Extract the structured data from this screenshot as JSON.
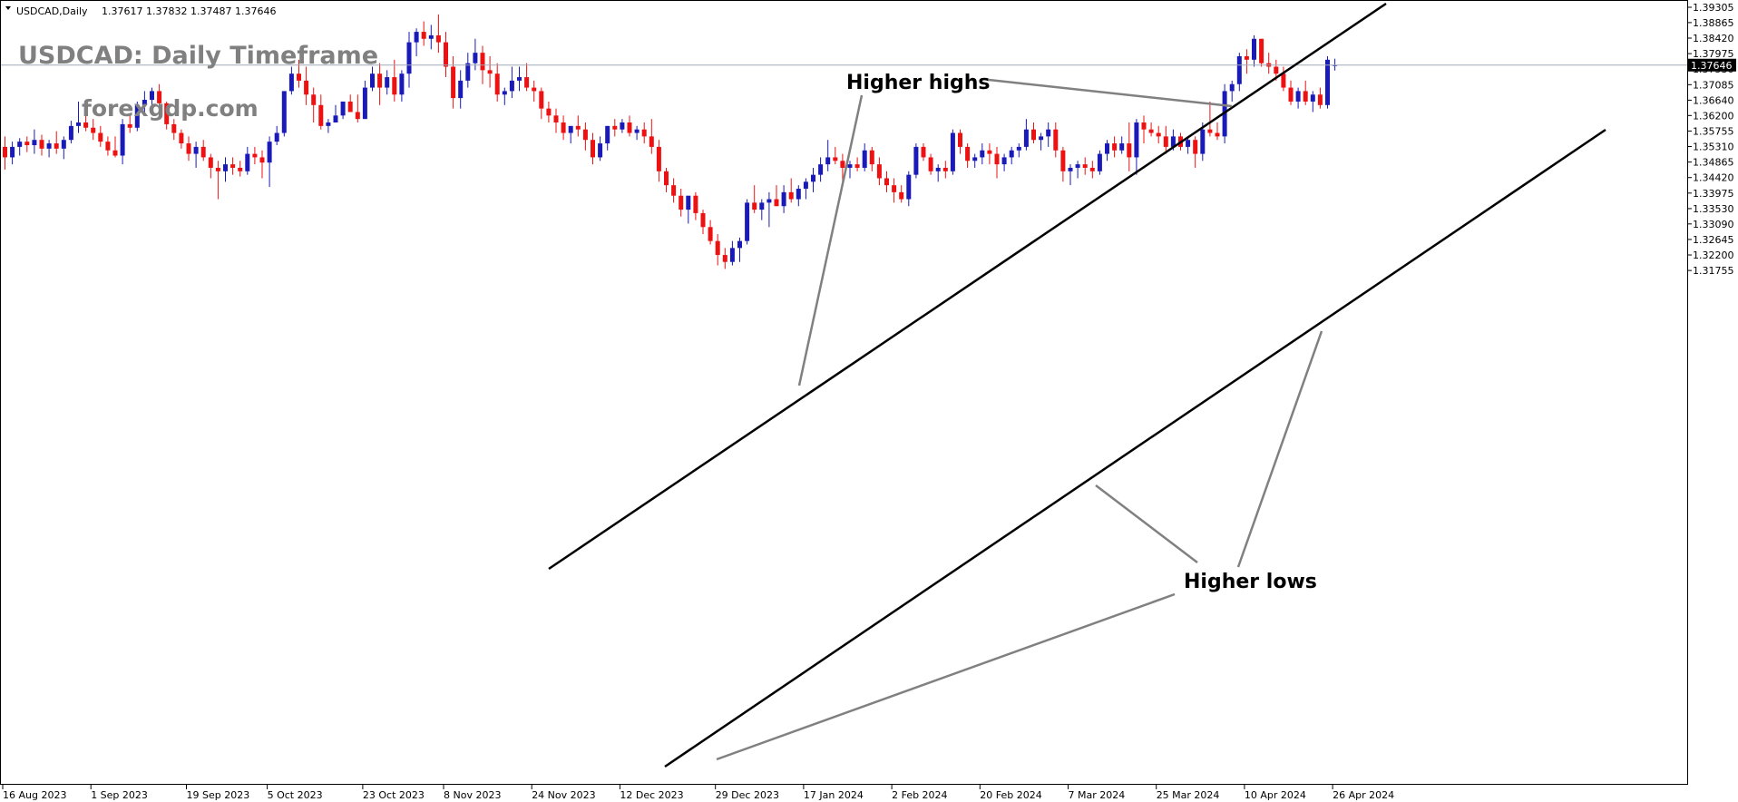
{
  "header": {
    "symbol_info": "USDCAD,Daily",
    "ohlc": "1.37617 1.37832 1.37487 1.37646"
  },
  "watermark": {
    "title": "USDCAD: Daily Timeframe",
    "site": "forexgdp.com"
  },
  "annotations": {
    "higher_highs": "Higher highs",
    "higher_lows": "Higher lows"
  },
  "current_price": {
    "value": 1.37646,
    "label": "1.37646"
  },
  "colors": {
    "bull": "#1a1ab8",
    "bear": "#ee1111",
    "channel": "#000000",
    "pointer": "#808080",
    "price_line": "#a0a8b8",
    "price_tag_bg": "#000000"
  },
  "chart_data": {
    "type": "candlestick",
    "symbol": "USDCAD",
    "timeframe": "Daily",
    "ylim": [
      1.1755,
      1.39305
    ],
    "y_ticks": [
      "1.39305",
      "1.38865",
      "1.38420",
      "1.37975",
      "1.37530",
      "1.37085",
      "1.36640",
      "1.36200",
      "1.35755",
      "1.35310",
      "1.34865",
      "1.34420",
      "1.33975",
      "1.33530",
      "1.33090",
      "1.32645",
      "1.32200",
      "1.31755"
    ],
    "x_labels": [
      "16 Aug 2023",
      "1 Sep 2023",
      "19 Sep 2023",
      "5 Oct 2023",
      "23 Oct 2023",
      "8 Nov 2023",
      "24 Nov 2023",
      "12 Dec 2023",
      "29 Dec 2023",
      "17 Jan 2024",
      "2 Feb 2024",
      "20 Feb 2024",
      "7 Mar 2024",
      "25 Mar 2024",
      "10 Apr 2024",
      "26 Apr 2024"
    ],
    "x_label_index": [
      0,
      12,
      25,
      36,
      49,
      60,
      72,
      84,
      97,
      109,
      121,
      133,
      145,
      157,
      169,
      181
    ],
    "candles": [
      [
        1.353,
        1.356,
        1.3465,
        1.35
      ],
      [
        1.35,
        1.3545,
        1.348,
        1.353
      ],
      [
        1.353,
        1.3555,
        1.3505,
        1.3545
      ],
      [
        1.3545,
        1.356,
        1.3515,
        1.3535
      ],
      [
        1.3535,
        1.358,
        1.351,
        1.355
      ],
      [
        1.355,
        1.3565,
        1.3505,
        1.3525
      ],
      [
        1.3525,
        1.355,
        1.35,
        1.354
      ],
      [
        1.354,
        1.3575,
        1.351,
        1.3525
      ],
      [
        1.3525,
        1.356,
        1.3495,
        1.355
      ],
      [
        1.355,
        1.3605,
        1.354,
        1.359
      ],
      [
        1.359,
        1.366,
        1.357,
        1.36
      ],
      [
        1.36,
        1.365,
        1.3575,
        1.3585
      ],
      [
        1.3585,
        1.361,
        1.355,
        1.357
      ],
      [
        1.357,
        1.359,
        1.353,
        1.3545
      ],
      [
        1.3545,
        1.356,
        1.3505,
        1.352
      ],
      [
        1.352,
        1.356,
        1.35,
        1.3505
      ],
      [
        1.3505,
        1.361,
        1.348,
        1.3595
      ],
      [
        1.3595,
        1.362,
        1.357,
        1.3585
      ],
      [
        1.3585,
        1.366,
        1.3575,
        1.365
      ],
      [
        1.365,
        1.369,
        1.3625,
        1.3665
      ],
      [
        1.3665,
        1.37,
        1.364,
        1.369
      ],
      [
        1.369,
        1.371,
        1.364,
        1.3655
      ],
      [
        1.3655,
        1.366,
        1.358,
        1.3595
      ],
      [
        1.3595,
        1.361,
        1.355,
        1.357
      ],
      [
        1.357,
        1.358,
        1.3525,
        1.354
      ],
      [
        1.354,
        1.356,
        1.349,
        1.351
      ],
      [
        1.351,
        1.3545,
        1.347,
        1.353
      ],
      [
        1.353,
        1.355,
        1.349,
        1.35
      ],
      [
        1.35,
        1.351,
        1.344,
        1.347
      ],
      [
        1.347,
        1.349,
        1.338,
        1.346
      ],
      [
        1.346,
        1.35,
        1.343,
        1.348
      ],
      [
        1.348,
        1.35,
        1.345,
        1.347
      ],
      [
        1.347,
        1.349,
        1.3445,
        1.346
      ],
      [
        1.346,
        1.353,
        1.345,
        1.351
      ],
      [
        1.351,
        1.353,
        1.348,
        1.35
      ],
      [
        1.35,
        1.352,
        1.344,
        1.3485
      ],
      [
        1.3485,
        1.356,
        1.3415,
        1.3545
      ],
      [
        1.3545,
        1.359,
        1.3535,
        1.357
      ],
      [
        1.357,
        1.369,
        1.356,
        1.369
      ],
      [
        1.369,
        1.376,
        1.368,
        1.374
      ],
      [
        1.374,
        1.378,
        1.37,
        1.372
      ],
      [
        1.372,
        1.376,
        1.365,
        1.368
      ],
      [
        1.368,
        1.37,
        1.36,
        1.365
      ],
      [
        1.365,
        1.368,
        1.358,
        1.359
      ],
      [
        1.359,
        1.361,
        1.357,
        1.36
      ],
      [
        1.36,
        1.365,
        1.36,
        1.362
      ],
      [
        1.362,
        1.365,
        1.361,
        1.366
      ],
      [
        1.366,
        1.368,
        1.364,
        1.363
      ],
      [
        1.363,
        1.368,
        1.36,
        1.361
      ],
      [
        1.361,
        1.372,
        1.361,
        1.37
      ],
      [
        1.37,
        1.376,
        1.369,
        1.374
      ],
      [
        1.374,
        1.377,
        1.365,
        1.37
      ],
      [
        1.37,
        1.375,
        1.368,
        1.373
      ],
      [
        1.373,
        1.378,
        1.366,
        1.368
      ],
      [
        1.368,
        1.375,
        1.366,
        1.374
      ],
      [
        1.374,
        1.386,
        1.37,
        1.383
      ],
      [
        1.383,
        1.387,
        1.379,
        1.386
      ],
      [
        1.386,
        1.389,
        1.382,
        1.384
      ],
      [
        1.384,
        1.388,
        1.381,
        1.385
      ],
      [
        1.385,
        1.391,
        1.38,
        1.383
      ],
      [
        1.383,
        1.386,
        1.373,
        1.376
      ],
      [
        1.376,
        1.379,
        1.364,
        1.367
      ],
      [
        1.367,
        1.375,
        1.364,
        1.372
      ],
      [
        1.372,
        1.38,
        1.37,
        1.377
      ],
      [
        1.377,
        1.384,
        1.375,
        1.38
      ],
      [
        1.38,
        1.382,
        1.371,
        1.375
      ],
      [
        1.375,
        1.379,
        1.37,
        1.374
      ],
      [
        1.374,
        1.377,
        1.366,
        1.368
      ],
      [
        1.368,
        1.37,
        1.365,
        1.369
      ],
      [
        1.369,
        1.376,
        1.367,
        1.372
      ],
      [
        1.372,
        1.376,
        1.369,
        1.373
      ],
      [
        1.373,
        1.377,
        1.369,
        1.37
      ],
      [
        1.37,
        1.372,
        1.366,
        1.369
      ],
      [
        1.369,
        1.37,
        1.361,
        1.364
      ],
      [
        1.364,
        1.366,
        1.36,
        1.362
      ],
      [
        1.362,
        1.364,
        1.357,
        1.36
      ],
      [
        1.36,
        1.362,
        1.355,
        1.357
      ],
      [
        1.357,
        1.359,
        1.354,
        1.359
      ],
      [
        1.359,
        1.362,
        1.356,
        1.358
      ],
      [
        1.358,
        1.36,
        1.352,
        1.355
      ],
      [
        1.355,
        1.357,
        1.348,
        1.35
      ],
      [
        1.35,
        1.356,
        1.349,
        1.354
      ],
      [
        1.354,
        1.359,
        1.352,
        1.359
      ],
      [
        1.359,
        1.361,
        1.356,
        1.358
      ],
      [
        1.358,
        1.361,
        1.357,
        1.36
      ],
      [
        1.36,
        1.362,
        1.356,
        1.357
      ],
      [
        1.357,
        1.359,
        1.355,
        1.358
      ],
      [
        1.358,
        1.36,
        1.354,
        1.356
      ],
      [
        1.356,
        1.361,
        1.351,
        1.353
      ],
      [
        1.353,
        1.355,
        1.343,
        1.346
      ],
      [
        1.346,
        1.347,
        1.34,
        1.342
      ],
      [
        1.342,
        1.344,
        1.337,
        1.339
      ],
      [
        1.339,
        1.341,
        1.333,
        1.335
      ],
      [
        1.335,
        1.337,
        1.331,
        1.339
      ],
      [
        1.339,
        1.34,
        1.332,
        1.334
      ],
      [
        1.334,
        1.335,
        1.328,
        1.33
      ],
      [
        1.33,
        1.332,
        1.325,
        1.326
      ],
      [
        1.326,
        1.328,
        1.319,
        1.322
      ],
      [
        1.322,
        1.324,
        1.318,
        1.32
      ],
      [
        1.32,
        1.326,
        1.319,
        1.324
      ],
      [
        1.324,
        1.327,
        1.32,
        1.326
      ],
      [
        1.326,
        1.338,
        1.325,
        1.337
      ],
      [
        1.337,
        1.342,
        1.334,
        1.335
      ],
      [
        1.335,
        1.338,
        1.332,
        1.337
      ],
      [
        1.337,
        1.34,
        1.33,
        1.338
      ],
      [
        1.338,
        1.342,
        1.336,
        1.336
      ],
      [
        1.336,
        1.342,
        1.334,
        1.34
      ],
      [
        1.34,
        1.344,
        1.337,
        1.338
      ],
      [
        1.338,
        1.342,
        1.336,
        1.341
      ],
      [
        1.341,
        1.344,
        1.338,
        1.343
      ],
      [
        1.343,
        1.347,
        1.34,
        1.345
      ],
      [
        1.345,
        1.35,
        1.343,
        1.348
      ],
      [
        1.348,
        1.355,
        1.346,
        1.35
      ],
      [
        1.35,
        1.353,
        1.348,
        1.349
      ],
      [
        1.349,
        1.351,
        1.343,
        1.347
      ],
      [
        1.347,
        1.349,
        1.344,
        1.348
      ],
      [
        1.348,
        1.35,
        1.346,
        1.347
      ],
      [
        1.347,
        1.354,
        1.346,
        1.352
      ],
      [
        1.352,
        1.353,
        1.346,
        1.348
      ],
      [
        1.348,
        1.35,
        1.342,
        1.344
      ],
      [
        1.344,
        1.346,
        1.34,
        1.342
      ],
      [
        1.342,
        1.344,
        1.337,
        1.34
      ],
      [
        1.34,
        1.342,
        1.337,
        1.338
      ],
      [
        1.338,
        1.346,
        1.336,
        1.345
      ],
      [
        1.345,
        1.354,
        1.344,
        1.353
      ],
      [
        1.353,
        1.354,
        1.349,
        1.35
      ],
      [
        1.35,
        1.351,
        1.345,
        1.346
      ],
      [
        1.346,
        1.348,
        1.343,
        1.347
      ],
      [
        1.347,
        1.349,
        1.344,
        1.346
      ],
      [
        1.346,
        1.358,
        1.345,
        1.357
      ],
      [
        1.357,
        1.358,
        1.351,
        1.353
      ],
      [
        1.353,
        1.354,
        1.347,
        1.349
      ],
      [
        1.349,
        1.351,
        1.347,
        1.35
      ],
      [
        1.35,
        1.354,
        1.348,
        1.352
      ],
      [
        1.352,
        1.354,
        1.348,
        1.351
      ],
      [
        1.351,
        1.353,
        1.344,
        1.348
      ],
      [
        1.348,
        1.351,
        1.346,
        1.35
      ],
      [
        1.35,
        1.353,
        1.348,
        1.352
      ],
      [
        1.352,
        1.354,
        1.35,
        1.353
      ],
      [
        1.353,
        1.361,
        1.352,
        1.358
      ],
      [
        1.358,
        1.36,
        1.354,
        1.355
      ],
      [
        1.355,
        1.357,
        1.352,
        1.356
      ],
      [
        1.356,
        1.36,
        1.353,
        1.358
      ],
      [
        1.358,
        1.36,
        1.35,
        1.352
      ],
      [
        1.352,
        1.353,
        1.343,
        1.346
      ],
      [
        1.346,
        1.348,
        1.342,
        1.347
      ],
      [
        1.347,
        1.349,
        1.344,
        1.348
      ],
      [
        1.348,
        1.35,
        1.345,
        1.347
      ],
      [
        1.347,
        1.349,
        1.344,
        1.346
      ],
      [
        1.346,
        1.352,
        1.345,
        1.351
      ],
      [
        1.351,
        1.355,
        1.349,
        1.354
      ],
      [
        1.354,
        1.356,
        1.35,
        1.352
      ],
      [
        1.352,
        1.356,
        1.351,
        1.354
      ],
      [
        1.354,
        1.36,
        1.346,
        1.35
      ],
      [
        1.35,
        1.361,
        1.345,
        1.36
      ],
      [
        1.36,
        1.362,
        1.354,
        1.358
      ],
      [
        1.358,
        1.36,
        1.356,
        1.357
      ],
      [
        1.357,
        1.359,
        1.354,
        1.356
      ],
      [
        1.356,
        1.359,
        1.351,
        1.353
      ],
      [
        1.353,
        1.358,
        1.352,
        1.356
      ],
      [
        1.356,
        1.357,
        1.352,
        1.353
      ],
      [
        1.353,
        1.356,
        1.351,
        1.355
      ],
      [
        1.355,
        1.356,
        1.347,
        1.351
      ],
      [
        1.351,
        1.36,
        1.349,
        1.358
      ],
      [
        1.358,
        1.366,
        1.356,
        1.357
      ],
      [
        1.357,
        1.36,
        1.355,
        1.356
      ],
      [
        1.356,
        1.371,
        1.354,
        1.369
      ],
      [
        1.369,
        1.372,
        1.366,
        1.371
      ],
      [
        1.371,
        1.38,
        1.369,
        1.379
      ],
      [
        1.379,
        1.381,
        1.374,
        1.378
      ],
      [
        1.378,
        1.385,
        1.376,
        1.384
      ],
      [
        1.384,
        1.384,
        1.376,
        1.377
      ],
      [
        1.377,
        1.38,
        1.374,
        1.376
      ],
      [
        1.376,
        1.378,
        1.372,
        1.374
      ],
      [
        1.374,
        1.376,
        1.369,
        1.37
      ],
      [
        1.37,
        1.372,
        1.365,
        1.366
      ],
      [
        1.366,
        1.37,
        1.364,
        1.369
      ],
      [
        1.369,
        1.372,
        1.365,
        1.366
      ],
      [
        1.366,
        1.369,
        1.363,
        1.368
      ],
      [
        1.368,
        1.37,
        1.364,
        1.365
      ],
      [
        1.365,
        1.379,
        1.364,
        1.378
      ],
      [
        1.3762,
        1.3783,
        1.3749,
        1.3765
      ]
    ]
  }
}
